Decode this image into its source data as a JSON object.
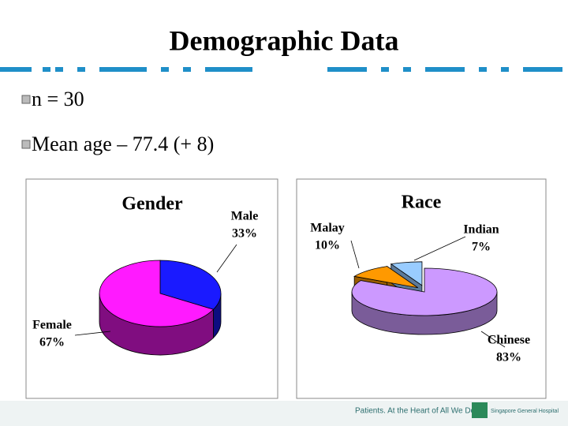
{
  "title": "Demographic Data",
  "bullets": [
    "n = 30",
    "Mean age – 77.4 (+ 8)"
  ],
  "chart_data": [
    {
      "type": "pie",
      "title": "Gender",
      "categories": [
        "Male",
        "Female"
      ],
      "values": [
        33,
        67
      ],
      "value_labels": [
        "33%",
        "67%"
      ],
      "colors": [
        "#1a1aff",
        "#ff1aff"
      ]
    },
    {
      "type": "pie",
      "title": "Race",
      "categories": [
        "Chinese",
        "Malay",
        "Indian"
      ],
      "values": [
        83,
        10,
        7
      ],
      "value_labels": [
        "83%",
        "10%",
        "7%"
      ],
      "colors": [
        "#cc99ff",
        "#ff9900",
        "#99ccff"
      ]
    }
  ],
  "footer": {
    "tagline": "Patients. At the Heart of All We Do.",
    "logo": "Singapore General Hospital"
  }
}
